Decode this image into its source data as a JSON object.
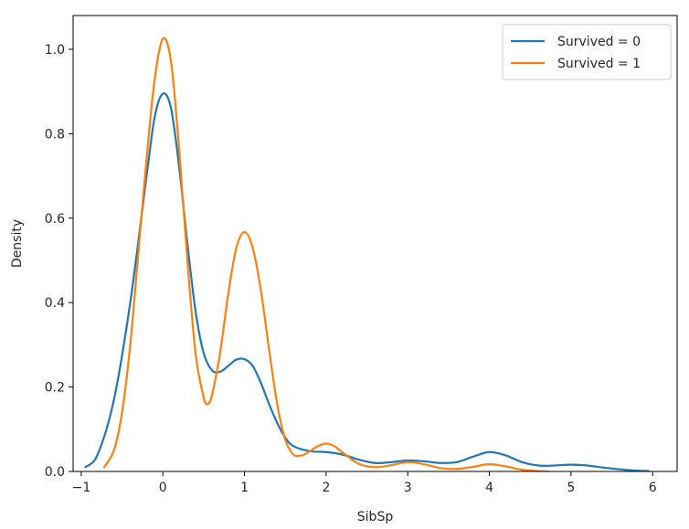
{
  "chart_data": {
    "type": "line",
    "title": "",
    "xlabel": "SibSp",
    "ylabel": "Density",
    "xlim": [
      -1.1,
      6.3
    ],
    "ylim": [
      0,
      1.08
    ],
    "xticks": [
      -1,
      0,
      1,
      2,
      3,
      4,
      5,
      6
    ],
    "xtick_labels": [
      "−1",
      "0",
      "1",
      "2",
      "3",
      "4",
      "5",
      "6"
    ],
    "yticks": [
      0.0,
      0.2,
      0.4,
      0.6,
      0.8,
      1.0
    ],
    "ytick_labels": [
      "0.0",
      "0.2",
      "0.4",
      "0.6",
      "0.8",
      "1.0"
    ],
    "grid": false,
    "legend_position": "top-right",
    "series": [
      {
        "name": "Survived = 0",
        "color": "#1f77b4",
        "points": [
          [
            -0.95,
            0.01
          ],
          [
            -0.8,
            0.04
          ],
          [
            -0.6,
            0.17
          ],
          [
            -0.4,
            0.4
          ],
          [
            -0.2,
            0.7
          ],
          [
            -0.1,
            0.84
          ],
          [
            0.0,
            0.895
          ],
          [
            0.1,
            0.86
          ],
          [
            0.2,
            0.72
          ],
          [
            0.3,
            0.54
          ],
          [
            0.4,
            0.38
          ],
          [
            0.5,
            0.28
          ],
          [
            0.6,
            0.24
          ],
          [
            0.7,
            0.236
          ],
          [
            0.8,
            0.25
          ],
          [
            0.9,
            0.265
          ],
          [
            1.0,
            0.266
          ],
          [
            1.1,
            0.25
          ],
          [
            1.2,
            0.21
          ],
          [
            1.3,
            0.16
          ],
          [
            1.4,
            0.115
          ],
          [
            1.5,
            0.08
          ],
          [
            1.6,
            0.06
          ],
          [
            1.8,
            0.048
          ],
          [
            2.0,
            0.046
          ],
          [
            2.2,
            0.04
          ],
          [
            2.4,
            0.028
          ],
          [
            2.6,
            0.02
          ],
          [
            2.8,
            0.022
          ],
          [
            3.0,
            0.026
          ],
          [
            3.2,
            0.024
          ],
          [
            3.4,
            0.02
          ],
          [
            3.6,
            0.022
          ],
          [
            3.8,
            0.035
          ],
          [
            4.0,
            0.046
          ],
          [
            4.2,
            0.038
          ],
          [
            4.4,
            0.022
          ],
          [
            4.6,
            0.014
          ],
          [
            4.8,
            0.014
          ],
          [
            5.0,
            0.016
          ],
          [
            5.2,
            0.014
          ],
          [
            5.4,
            0.009
          ],
          [
            5.6,
            0.005
          ],
          [
            5.8,
            0.002
          ],
          [
            5.95,
            0.001
          ]
        ]
      },
      {
        "name": "Survived = 1",
        "color": "#ff7f0e",
        "points": [
          [
            -0.72,
            0.01
          ],
          [
            -0.6,
            0.05
          ],
          [
            -0.5,
            0.14
          ],
          [
            -0.4,
            0.3
          ],
          [
            -0.3,
            0.52
          ],
          [
            -0.2,
            0.74
          ],
          [
            -0.1,
            0.93
          ],
          [
            0.0,
            1.025
          ],
          [
            0.1,
            0.97
          ],
          [
            0.2,
            0.76
          ],
          [
            0.3,
            0.5
          ],
          [
            0.4,
            0.28
          ],
          [
            0.5,
            0.175
          ],
          [
            0.55,
            0.16
          ],
          [
            0.6,
            0.18
          ],
          [
            0.7,
            0.28
          ],
          [
            0.8,
            0.42
          ],
          [
            0.9,
            0.53
          ],
          [
            1.0,
            0.567
          ],
          [
            1.1,
            0.53
          ],
          [
            1.2,
            0.43
          ],
          [
            1.3,
            0.29
          ],
          [
            1.4,
            0.16
          ],
          [
            1.5,
            0.075
          ],
          [
            1.6,
            0.04
          ],
          [
            1.7,
            0.038
          ],
          [
            1.8,
            0.048
          ],
          [
            1.9,
            0.06
          ],
          [
            2.0,
            0.066
          ],
          [
            2.1,
            0.06
          ],
          [
            2.2,
            0.045
          ],
          [
            2.4,
            0.018
          ],
          [
            2.6,
            0.01
          ],
          [
            2.8,
            0.015
          ],
          [
            3.0,
            0.022
          ],
          [
            3.2,
            0.017
          ],
          [
            3.4,
            0.008
          ],
          [
            3.6,
            0.006
          ],
          [
            3.8,
            0.011
          ],
          [
            4.0,
            0.017
          ],
          [
            4.2,
            0.012
          ],
          [
            4.4,
            0.004
          ],
          [
            4.6,
            0.001
          ],
          [
            4.72,
            0.0
          ]
        ]
      }
    ]
  }
}
